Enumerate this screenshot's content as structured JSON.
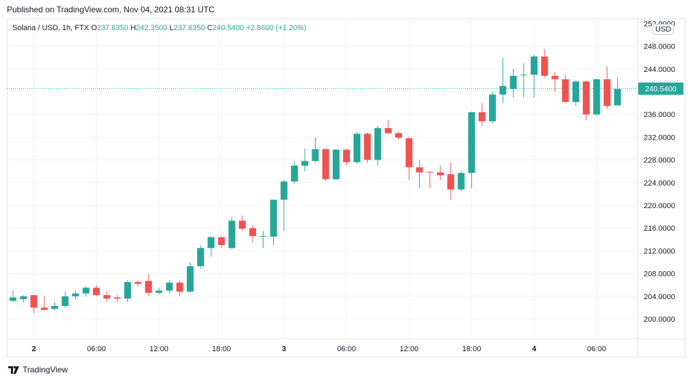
{
  "header": {
    "published": "Published on TradingView.com, Nov 04, 2021 08:31 UTC"
  },
  "legend": {
    "symbol": "Solana / USD, 1h, FTX",
    "open_label": "O",
    "open": "237.6350",
    "high_label": "H",
    "high": "242.3500",
    "low_label": "L",
    "low": "237.6350",
    "close_label": "C",
    "close": "240.5400",
    "change": "+2.8600 (+1.20%)"
  },
  "currency_badge": "USD",
  "footer": {
    "brand": "TradingView"
  },
  "colors": {
    "up": "#26a69a",
    "down": "#ef5350",
    "grid": "#f0f3fa",
    "axis_text": "#131722",
    "last_price_line": "#26a69a"
  },
  "chart_data": {
    "type": "candlestick",
    "title": "Solana / USD, 1h, FTX",
    "ylabel": "USD",
    "ylim": [
      196.0,
      250.0
    ],
    "y_ticks": [
      "248.0000",
      "244.0000",
      "240.0000",
      "236.0000",
      "232.0000",
      "228.0000",
      "224.0000",
      "220.0000",
      "216.0000",
      "212.0000",
      "208.0000",
      "204.0000",
      "200.0000"
    ],
    "top_tick_partial": "252.0000",
    "x_ticks": [
      {
        "label": "2",
        "index": 2,
        "bold": true
      },
      {
        "label": "06:00",
        "index": 8
      },
      {
        "label": "12:00",
        "index": 14
      },
      {
        "label": "18:00",
        "index": 20
      },
      {
        "label": "3",
        "index": 26,
        "bold": true
      },
      {
        "label": "06:00",
        "index": 32
      },
      {
        "label": "12:00",
        "index": 38
      },
      {
        "label": "18:00",
        "index": 44
      },
      {
        "label": "4",
        "index": 50,
        "bold": true
      },
      {
        "label": "06:00",
        "index": 56
      }
    ],
    "last_price": 240.54,
    "last_price_label": "240.5400",
    "candles": [
      {
        "o": 203.2,
        "h": 205.0,
        "l": 203.0,
        "c": 203.8
      },
      {
        "o": 203.5,
        "h": 204.2,
        "l": 202.9,
        "c": 204.0
      },
      {
        "o": 204.2,
        "h": 204.3,
        "l": 201.0,
        "c": 202.0
      },
      {
        "o": 202.0,
        "h": 204.0,
        "l": 201.5,
        "c": 201.6
      },
      {
        "o": 201.8,
        "h": 203.0,
        "l": 201.5,
        "c": 202.3
      },
      {
        "o": 202.3,
        "h": 204.8,
        "l": 202.0,
        "c": 204.0
      },
      {
        "o": 204.0,
        "h": 205.0,
        "l": 203.5,
        "c": 204.5
      },
      {
        "o": 204.5,
        "h": 205.7,
        "l": 204.0,
        "c": 205.5
      },
      {
        "o": 205.5,
        "h": 206.0,
        "l": 204.0,
        "c": 204.2
      },
      {
        "o": 204.2,
        "h": 205.0,
        "l": 203.0,
        "c": 203.6
      },
      {
        "o": 203.8,
        "h": 204.2,
        "l": 203.0,
        "c": 203.6
      },
      {
        "o": 203.6,
        "h": 206.8,
        "l": 203.0,
        "c": 206.5
      },
      {
        "o": 206.5,
        "h": 206.8,
        "l": 205.8,
        "c": 206.2
      },
      {
        "o": 206.7,
        "h": 208.0,
        "l": 204.0,
        "c": 204.6
      },
      {
        "o": 204.6,
        "h": 205.5,
        "l": 204.3,
        "c": 205.0
      },
      {
        "o": 205.0,
        "h": 206.8,
        "l": 204.5,
        "c": 206.4
      },
      {
        "o": 206.4,
        "h": 206.8,
        "l": 204.0,
        "c": 204.8
      },
      {
        "o": 204.8,
        "h": 210.0,
        "l": 204.6,
        "c": 209.3
      },
      {
        "o": 209.3,
        "h": 213.0,
        "l": 208.8,
        "c": 212.5
      },
      {
        "o": 212.5,
        "h": 214.5,
        "l": 211.0,
        "c": 214.4
      },
      {
        "o": 214.4,
        "h": 214.5,
        "l": 212.5,
        "c": 213.0
      },
      {
        "o": 212.5,
        "h": 218.0,
        "l": 212.3,
        "c": 217.3
      },
      {
        "o": 217.3,
        "h": 218.2,
        "l": 215.5,
        "c": 215.9
      },
      {
        "o": 216.0,
        "h": 216.5,
        "l": 213.5,
        "c": 214.6
      },
      {
        "o": 214.6,
        "h": 215.5,
        "l": 212.5,
        "c": 214.6
      },
      {
        "o": 214.5,
        "h": 221.0,
        "l": 213.0,
        "c": 221.0
      },
      {
        "o": 221.0,
        "h": 224.5,
        "l": 215.5,
        "c": 224.2
      },
      {
        "o": 224.2,
        "h": 227.8,
        "l": 223.8,
        "c": 227.0
      },
      {
        "o": 227.0,
        "h": 230.0,
        "l": 226.0,
        "c": 227.8
      },
      {
        "o": 227.8,
        "h": 232.0,
        "l": 227.5,
        "c": 229.9
      },
      {
        "o": 229.9,
        "h": 230.0,
        "l": 224.3,
        "c": 224.6
      },
      {
        "o": 224.6,
        "h": 229.9,
        "l": 224.5,
        "c": 229.8
      },
      {
        "o": 229.8,
        "h": 230.0,
        "l": 227.0,
        "c": 227.6
      },
      {
        "o": 227.6,
        "h": 233.0,
        "l": 227.3,
        "c": 232.6
      },
      {
        "o": 232.6,
        "h": 232.8,
        "l": 227.5,
        "c": 228.0
      },
      {
        "o": 228.0,
        "h": 234.0,
        "l": 227.0,
        "c": 233.6
      },
      {
        "o": 233.6,
        "h": 235.0,
        "l": 232.5,
        "c": 232.7
      },
      {
        "o": 232.7,
        "h": 233.0,
        "l": 231.6,
        "c": 231.9
      },
      {
        "o": 231.8,
        "h": 232.0,
        "l": 224.5,
        "c": 226.7
      },
      {
        "o": 226.7,
        "h": 228.0,
        "l": 223.0,
        "c": 225.8
      },
      {
        "o": 225.9,
        "h": 226.0,
        "l": 223.0,
        "c": 225.8
      },
      {
        "o": 225.8,
        "h": 227.0,
        "l": 224.5,
        "c": 225.3
      },
      {
        "o": 225.5,
        "h": 227.5,
        "l": 221.0,
        "c": 222.8
      },
      {
        "o": 222.8,
        "h": 226.0,
        "l": 222.5,
        "c": 225.7
      },
      {
        "o": 225.7,
        "h": 236.5,
        "l": 223.0,
        "c": 236.4
      },
      {
        "o": 236.4,
        "h": 238.0,
        "l": 234.0,
        "c": 234.8
      },
      {
        "o": 234.8,
        "h": 240.0,
        "l": 234.5,
        "c": 239.5
      },
      {
        "o": 239.5,
        "h": 246.0,
        "l": 238.0,
        "c": 241.0
      },
      {
        "o": 240.5,
        "h": 244.0,
        "l": 239.0,
        "c": 242.8
      },
      {
        "o": 243.0,
        "h": 245.0,
        "l": 239.0,
        "c": 243.0
      },
      {
        "o": 243.0,
        "h": 246.5,
        "l": 239.0,
        "c": 246.2
      },
      {
        "o": 246.2,
        "h": 247.5,
        "l": 242.5,
        "c": 242.8
      },
      {
        "o": 242.8,
        "h": 243.5,
        "l": 240.0,
        "c": 242.2
      },
      {
        "o": 242.2,
        "h": 243.0,
        "l": 238.0,
        "c": 238.2
      },
      {
        "o": 238.2,
        "h": 242.0,
        "l": 237.5,
        "c": 241.8
      },
      {
        "o": 241.8,
        "h": 242.0,
        "l": 235.0,
        "c": 236.0
      },
      {
        "o": 236.0,
        "h": 242.3,
        "l": 235.8,
        "c": 242.2
      },
      {
        "o": 242.2,
        "h": 244.5,
        "l": 237.0,
        "c": 237.5
      },
      {
        "o": 237.6,
        "h": 242.4,
        "l": 237.6,
        "c": 240.5
      }
    ]
  }
}
